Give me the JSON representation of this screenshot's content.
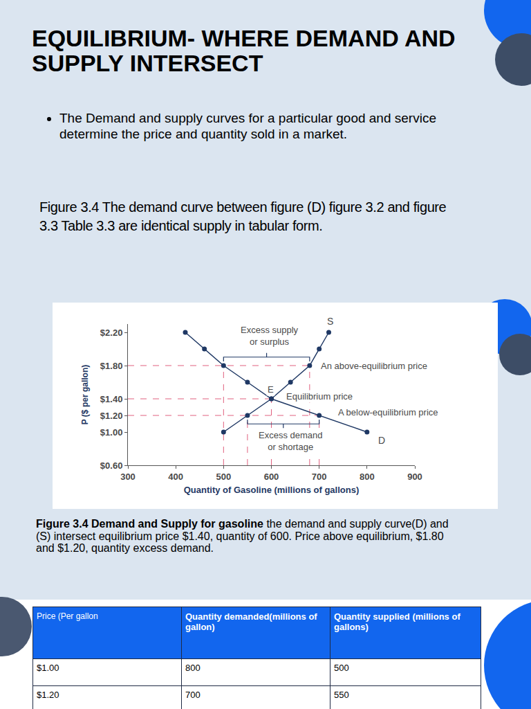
{
  "title": "EQUILIBRIUM- WHERE DEMAND AND SUPPLY INTERSECT",
  "bullets": [
    "The Demand and supply curves for a particular good and service determine the price and quantity sold in a market."
  ],
  "paragraph": "Figure 3.4 The demand curve between figure (D) figure 3.2 and figure 3.3 Table 3.3 are identical supply in tabular form.",
  "chart_data": {
    "type": "line",
    "x_label": "Quantity of Gasoline (millions of gallons)",
    "y_label": "P ($ per gallon)",
    "marker": "circle",
    "series": [
      {
        "name": "D",
        "color": "#1f3864",
        "x": [
          800,
          700,
          600,
          550,
          500,
          460,
          420
        ],
        "y": [
          1.0,
          1.2,
          1.4,
          1.6,
          1.8,
          2.0,
          2.2
        ]
      },
      {
        "name": "S",
        "color": "#1f3864",
        "x": [
          500,
          550,
          600,
          640,
          680,
          700,
          720
        ],
        "y": [
          1.0,
          1.2,
          1.4,
          1.6,
          1.8,
          2.0,
          2.2
        ]
      }
    ],
    "xlim": [
      300,
      900
    ],
    "xticks": [
      300,
      400,
      500,
      600,
      700,
      800,
      900
    ],
    "ylim": [
      0.6,
      2.3
    ],
    "yticks": [
      {
        "value": 0.6,
        "label": "$0.60"
      },
      {
        "value": 1.0,
        "label": "$1.00"
      },
      {
        "value": 1.2,
        "label": "$1.20"
      },
      {
        "value": 1.4,
        "label": "$1.40"
      },
      {
        "value": 1.8,
        "label": "$1.80"
      },
      {
        "value": 2.2,
        "label": "$2.20"
      }
    ],
    "grid": false,
    "guide_prices": [
      1.8,
      1.4,
      1.2
    ],
    "annotations": [
      {
        "text": "Excess supply\nor surplus",
        "x": 596,
        "y": 2.16
      },
      {
        "text": "E",
        "x": 598,
        "y": 1.51
      },
      {
        "text": "Equilibrium price",
        "x": 628,
        "y": 1.43
      },
      {
        "text": "An above-equilibrium price",
        "x": 700,
        "y": 1.8
      },
      {
        "text": "A below-equilibrium price",
        "x": 736,
        "y": 1.24
      },
      {
        "text": "Excess demand\nor shortage",
        "x": 640,
        "y": 0.89
      }
    ]
  },
  "caption": {
    "bold": "Figure 3.4 Demand and Supply for gasoline",
    "text": " the demand and supply curve(D) and (S) intersect equilibrium price $1.40, quantity of 600. Price above equilibrium, $1.80 and $1.20, quantity excess demand."
  },
  "table": {
    "header": [
      "Price (Per gallon",
      "Quantity demanded(millions of gallon)",
      "Quantity supplied (millions of gallons)"
    ],
    "rows": [
      [
        "$1.00",
        "800",
        "500"
      ],
      [
        "$1.20",
        "700",
        "550"
      ]
    ]
  }
}
